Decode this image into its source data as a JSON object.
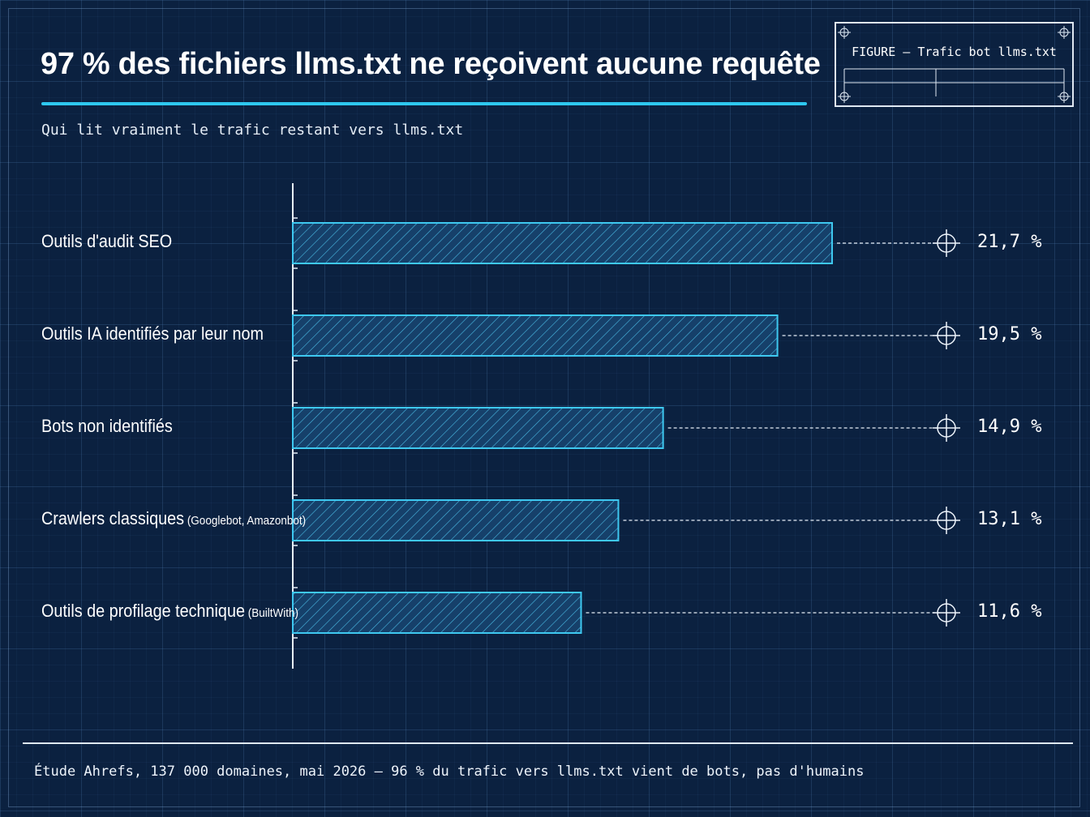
{
  "title": "97 % des fichiers llms.txt ne reçoivent aucune requête",
  "subtitle": "Qui lit vraiment le trafic restant vers llms.txt",
  "stamp_label": "FIGURE — Trafic bot llms.txt",
  "footer": "Étude Ahrefs, 137 000 domaines, mai 2026 — 96 % du trafic vers llms.txt vient de bots, pas d'humains",
  "colors": {
    "bar_stroke": "#3ec8f0",
    "background": "#0b2140",
    "accent": "#2ec8f0"
  },
  "chart_data": {
    "type": "bar",
    "orientation": "horizontal",
    "categories": [
      {
        "name": "Outils d'audit SEO",
        "note": ""
      },
      {
        "name": "Outils IA identifiés par leur nom",
        "note": ""
      },
      {
        "name": "Bots non identifiés",
        "note": ""
      },
      {
        "name": "Crawlers classiques",
        "note": "(Googlebot, Amazonbot)"
      },
      {
        "name": "Outils de profilage technique",
        "note": "(BuiltWith)"
      }
    ],
    "values": [
      21.7,
      19.5,
      14.9,
      13.1,
      11.6
    ],
    "value_labels": [
      "21,7 %",
      "19,5 %",
      "14,9 %",
      "13,1 %",
      "11,6 %"
    ],
    "unit": "%",
    "xlim": [
      0,
      22
    ],
    "grid": true,
    "legend": "none"
  }
}
